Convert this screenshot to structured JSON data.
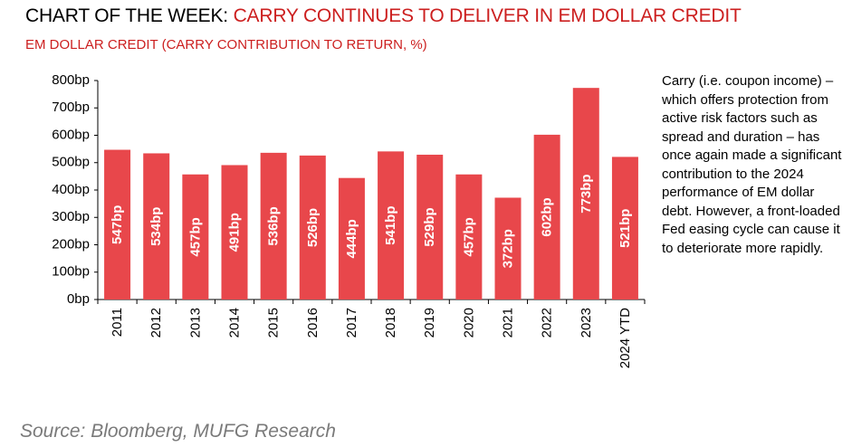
{
  "header": {
    "title_prefix": "CHART OF THE WEEK: ",
    "title_highlight": "CARRY CONTINUES TO DELIVER IN EM DOLLAR CREDIT",
    "subtitle": "EM DOLLAR CREDIT (CARRY CONTRIBUTION TO RETURN, %)"
  },
  "commentary": "Carry (i.e. coupon income) – which offers protection from active risk factors such as spread and duration – has once again made a significant contribution to the 2024 performance of EM dollar debt. However, a front-loaded Fed easing cycle can cause it to deteriorate more rapidly.",
  "source": "Source: Bloomberg, MUFG Research",
  "colors": {
    "accent": "#cc1f1f",
    "bar": "#e8474b",
    "bar_label": "#ffffff",
    "axis": "#000000",
    "source_text": "#7a7a7a"
  },
  "chart_data": {
    "type": "bar",
    "title": "EM DOLLAR CREDIT (CARRY CONTRIBUTION TO RETURN, %)",
    "xlabel": "",
    "ylabel": "",
    "unit_suffix": "bp",
    "ylim": [
      0,
      800
    ],
    "yticks": [
      0,
      100,
      200,
      300,
      400,
      500,
      600,
      700,
      800
    ],
    "ytick_labels": [
      "0bp",
      "100bp",
      "200bp",
      "300bp",
      "400bp",
      "500bp",
      "600bp",
      "700bp",
      "800bp"
    ],
    "categories": [
      "2011",
      "2012",
      "2013",
      "2014",
      "2015",
      "2016",
      "2017",
      "2018",
      "2019",
      "2020",
      "2021",
      "2022",
      "2023",
      "2024 YTD"
    ],
    "values": [
      547,
      534,
      457,
      491,
      536,
      526,
      444,
      541,
      529,
      457,
      372,
      602,
      773,
      521
    ],
    "data_labels": [
      "547bp",
      "534bp",
      "457bp",
      "491bp",
      "536bp",
      "526bp",
      "444bp",
      "541bp",
      "529bp",
      "457bp",
      "372bp",
      "602bp",
      "773bp",
      "521bp"
    ],
    "grid": false,
    "legend": "none"
  }
}
